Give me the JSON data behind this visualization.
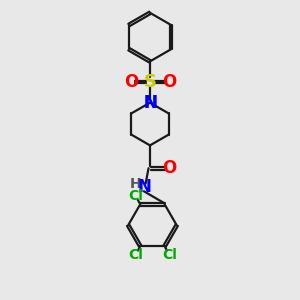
{
  "bg_color": "#e8e8e8",
  "line_color": "#1a1a1a",
  "bond_width": 1.6,
  "colors": {
    "S": "#cccc00",
    "O": "#ff0000",
    "N": "#0000ff",
    "Cl": "#00aa00",
    "H": "#555555"
  },
  "xlim": [
    -2.8,
    2.8
  ],
  "ylim": [
    -7.5,
    4.8
  ]
}
